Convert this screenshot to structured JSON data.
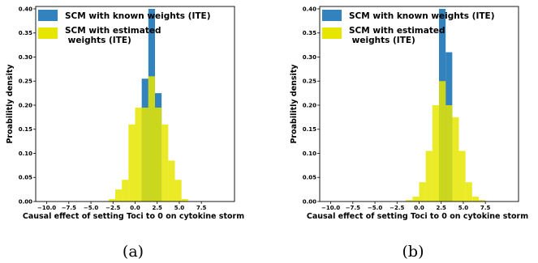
{
  "colors": {
    "known": "#3182bd",
    "estimated": "#e6e600",
    "overlap": "#c8d22a"
  },
  "chart_data": [
    {
      "type": "bar",
      "panel_label": "(a)",
      "xlabel": "Causal effect of setting Toci to 0 on cytokine storm",
      "ylabel": "Proabilitly density",
      "xlim": [
        -11.25,
        11.25
      ],
      "ylim": [
        0,
        0.405
      ],
      "xticks": [
        -10.0,
        -7.5,
        -5.0,
        -2.5,
        0.0,
        2.5,
        5.0,
        7.5
      ],
      "xtick_labels": [
        "−10.0",
        "−7.5",
        "−5.0",
        "−2.5",
        "0.0",
        "2.5",
        "5.0",
        "7.5"
      ],
      "yticks": [
        0.0,
        0.05,
        0.1,
        0.15,
        0.2,
        0.25,
        0.3,
        0.35,
        0.4
      ],
      "ytick_labels": [
        "0.00",
        "0.05",
        "0.10",
        "0.15",
        "0.20",
        "0.25",
        "0.30",
        "0.35",
        "0.40"
      ],
      "bin_width": 0.75,
      "legend": [
        "SCM with known weights (ITE)",
        "SCM with estimated\n weights (ITE)"
      ],
      "series": [
        {
          "name": "SCM with known weights (ITE)",
          "bins": [
            {
              "x": 0.0,
              "y": 0.0
            },
            {
              "x": 0.75,
              "y": 0.255
            },
            {
              "x": 1.5,
              "y": 0.4
            },
            {
              "x": 2.25,
              "y": 0.225
            }
          ]
        },
        {
          "name": "SCM with estimated weights (ITE)",
          "bins": [
            {
              "x": -3.0,
              "y": 0.005
            },
            {
              "x": -2.25,
              "y": 0.025
            },
            {
              "x": -1.5,
              "y": 0.045
            },
            {
              "x": -0.75,
              "y": 0.16
            },
            {
              "x": 0.0,
              "y": 0.195
            },
            {
              "x": 0.75,
              "y": 0.195
            },
            {
              "x": 1.5,
              "y": 0.26
            },
            {
              "x": 2.25,
              "y": 0.195
            },
            {
              "x": 3.0,
              "y": 0.16
            },
            {
              "x": 3.75,
              "y": 0.085
            },
            {
              "x": 4.5,
              "y": 0.045
            },
            {
              "x": 5.25,
              "y": 0.005
            }
          ]
        }
      ]
    },
    {
      "type": "bar",
      "panel_label": "(b)",
      "xlabel": "Causal effect of setting Toci to 0 on cytokine storm",
      "ylabel": "Proabilitly density",
      "xlim": [
        -11.25,
        11.25
      ],
      "ylim": [
        0,
        0.405
      ],
      "xticks": [
        -10.0,
        -7.5,
        -5.0,
        -2.5,
        0.0,
        2.5,
        5.0,
        7.5
      ],
      "xtick_labels": [
        "−10.0",
        "−7.5",
        "−5.0",
        "−2.5",
        "0.0",
        "2.5",
        "5.0",
        "7.5"
      ],
      "yticks": [
        0.0,
        0.05,
        0.1,
        0.15,
        0.2,
        0.25,
        0.3,
        0.35,
        0.4
      ],
      "ytick_labels": [
        "0.00",
        "0.05",
        "0.10",
        "0.15",
        "0.20",
        "0.25",
        "0.30",
        "0.35",
        "0.40"
      ],
      "bin_width": 0.75,
      "legend": [
        "SCM with known weights (ITE)",
        "SCM with estimated\n weights (ITE)"
      ],
      "series": [
        {
          "name": "SCM with known weights (ITE)",
          "bins": [
            {
              "x": 1.5,
              "y": 0.0
            },
            {
              "x": 2.25,
              "y": 0.4
            },
            {
              "x": 3.0,
              "y": 0.31
            },
            {
              "x": 3.75,
              "y": 0.0
            }
          ]
        },
        {
          "name": "SCM with estimated weights (ITE)",
          "bins": [
            {
              "x": -1.5,
              "y": 0.003
            },
            {
              "x": -0.75,
              "y": 0.01
            },
            {
              "x": 0.0,
              "y": 0.04
            },
            {
              "x": 0.75,
              "y": 0.105
            },
            {
              "x": 1.5,
              "y": 0.2
            },
            {
              "x": 2.25,
              "y": 0.25
            },
            {
              "x": 3.0,
              "y": 0.2
            },
            {
              "x": 3.75,
              "y": 0.175
            },
            {
              "x": 4.5,
              "y": 0.105
            },
            {
              "x": 5.25,
              "y": 0.04
            },
            {
              "x": 6.0,
              "y": 0.01
            },
            {
              "x": 6.75,
              "y": 0.003
            }
          ]
        }
      ]
    }
  ]
}
